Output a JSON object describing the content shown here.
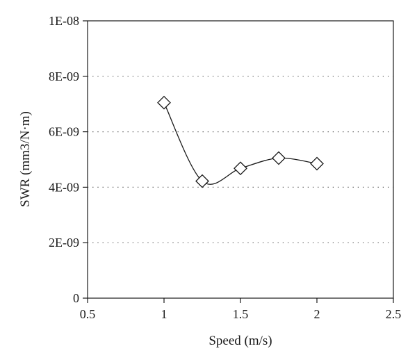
{
  "chart_data": {
    "type": "scatter",
    "title": "",
    "xlabel": "Speed (m/s)",
    "ylabel": "SWR (mm3/N·m)",
    "xlim": [
      0.5,
      2.5
    ],
    "ylim": [
      0,
      1e-08
    ],
    "x_ticks": [
      {
        "value": 0.5,
        "label": "0.5"
      },
      {
        "value": 1,
        "label": "1"
      },
      {
        "value": 1.5,
        "label": "1.5"
      },
      {
        "value": 2,
        "label": "2"
      },
      {
        "value": 2.5,
        "label": "2.5"
      }
    ],
    "y_ticks": [
      {
        "value": 0,
        "label": "0"
      },
      {
        "value": 2e-09,
        "label": "2E-09"
      },
      {
        "value": 4e-09,
        "label": "4E-09"
      },
      {
        "value": 6e-09,
        "label": "6E-09"
      },
      {
        "value": 8e-09,
        "label": "8E-09"
      },
      {
        "value": 1e-08,
        "label": "1E-08"
      }
    ],
    "grid": {
      "horizontal": true,
      "style": "dotted",
      "vertical": false
    },
    "marker": "open-diamond",
    "line": "smoothed",
    "series": [
      {
        "x": [
          1,
          1.25,
          1.5,
          1.75,
          2
        ],
        "y": [
          7.05e-09,
          4.22e-09,
          4.68e-09,
          5.05e-09,
          4.85e-09
        ]
      }
    ]
  }
}
